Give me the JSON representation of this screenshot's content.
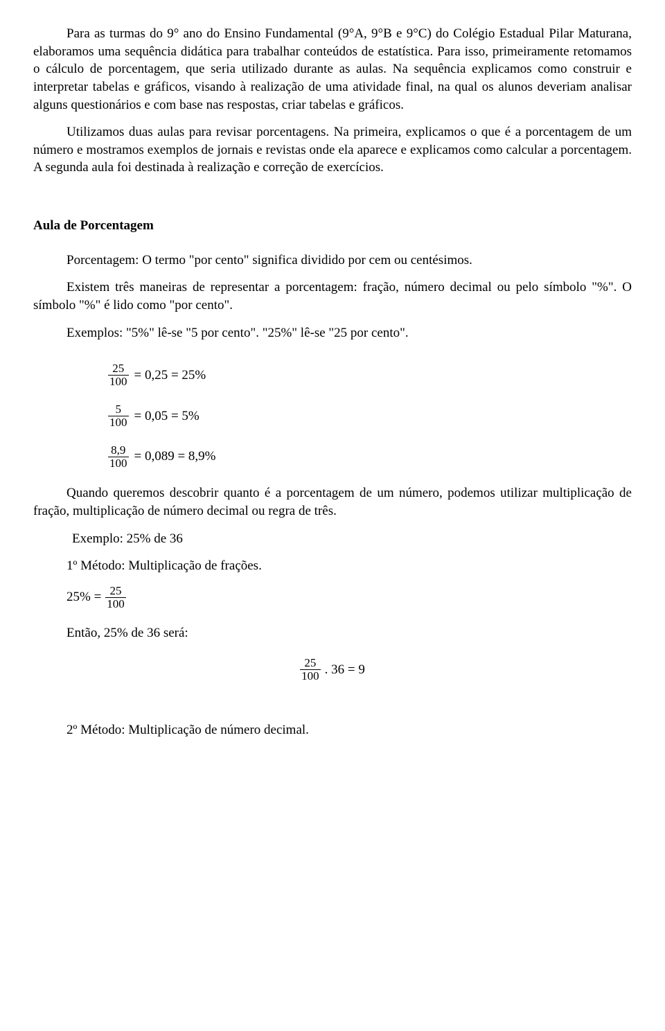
{
  "paragraphs": {
    "p1": "Para as turmas do 9° ano do Ensino Fundamental (9°A, 9°B e 9°C) do Colégio Estadual Pilar Maturana, elaboramos uma sequência didática para trabalhar conteúdos de estatística. Para isso, primeiramente retomamos o cálculo de porcentagem, que seria utilizado durante as aulas. Na sequência explicamos como construir e interpretar tabelas e gráficos, visando à realização de uma atividade final, na qual os alunos deveriam analisar alguns questionários e com base nas respostas, criar tabelas e gráficos.",
    "p2": "Utilizamos duas aulas para revisar porcentagens. Na primeira, explicamos o que é a porcentagem de um número e mostramos exemplos de jornais e revistas onde ela aparece e explicamos como calcular a porcentagem. A segunda aula foi destinada à realização e correção de exercícios."
  },
  "section_title": "Aula de Porcentagem",
  "lines": {
    "def": "Porcentagem: O termo \"por cento\" significa dividido por cem ou centésimos.",
    "rep": "Existem três maneiras de representar a porcentagem: fração, número decimal ou pelo símbolo \"%\".  O símbolo \"%\" é lido como \"por cento\".",
    "ex_read": "Exemplos: \"5%\" lê-se \"5 por cento\". \"25%\" lê-se \"25 por cento\".",
    "discover": "Quando queremos descobrir quanto é a porcentagem de um número, podemos utilizar multiplicação de fração, multiplicação de número decimal ou regra de três.",
    "example_label": "Exemplo: 25% de 36",
    "method1": "1º Método: Multiplicação de frações.",
    "then": "Então, 25% de 36 será:",
    "method2": "2º Método: Multiplicação de número decimal."
  },
  "fractions": {
    "f1": {
      "num": "25",
      "den": "100",
      "rhs": " = 0,25 = 25%"
    },
    "f2": {
      "num": "5",
      "den": "100",
      "rhs": " = 0,05 = 5%"
    },
    "f3": {
      "num": "8,9",
      "den": "100",
      "rhs": " = 0,089 = 8,9%"
    },
    "eq25": {
      "lhs": "25% = ",
      "num": "25",
      "den": "100"
    },
    "center": {
      "num": "25",
      "den": "100",
      "rhs": ". 36 = 9"
    }
  }
}
